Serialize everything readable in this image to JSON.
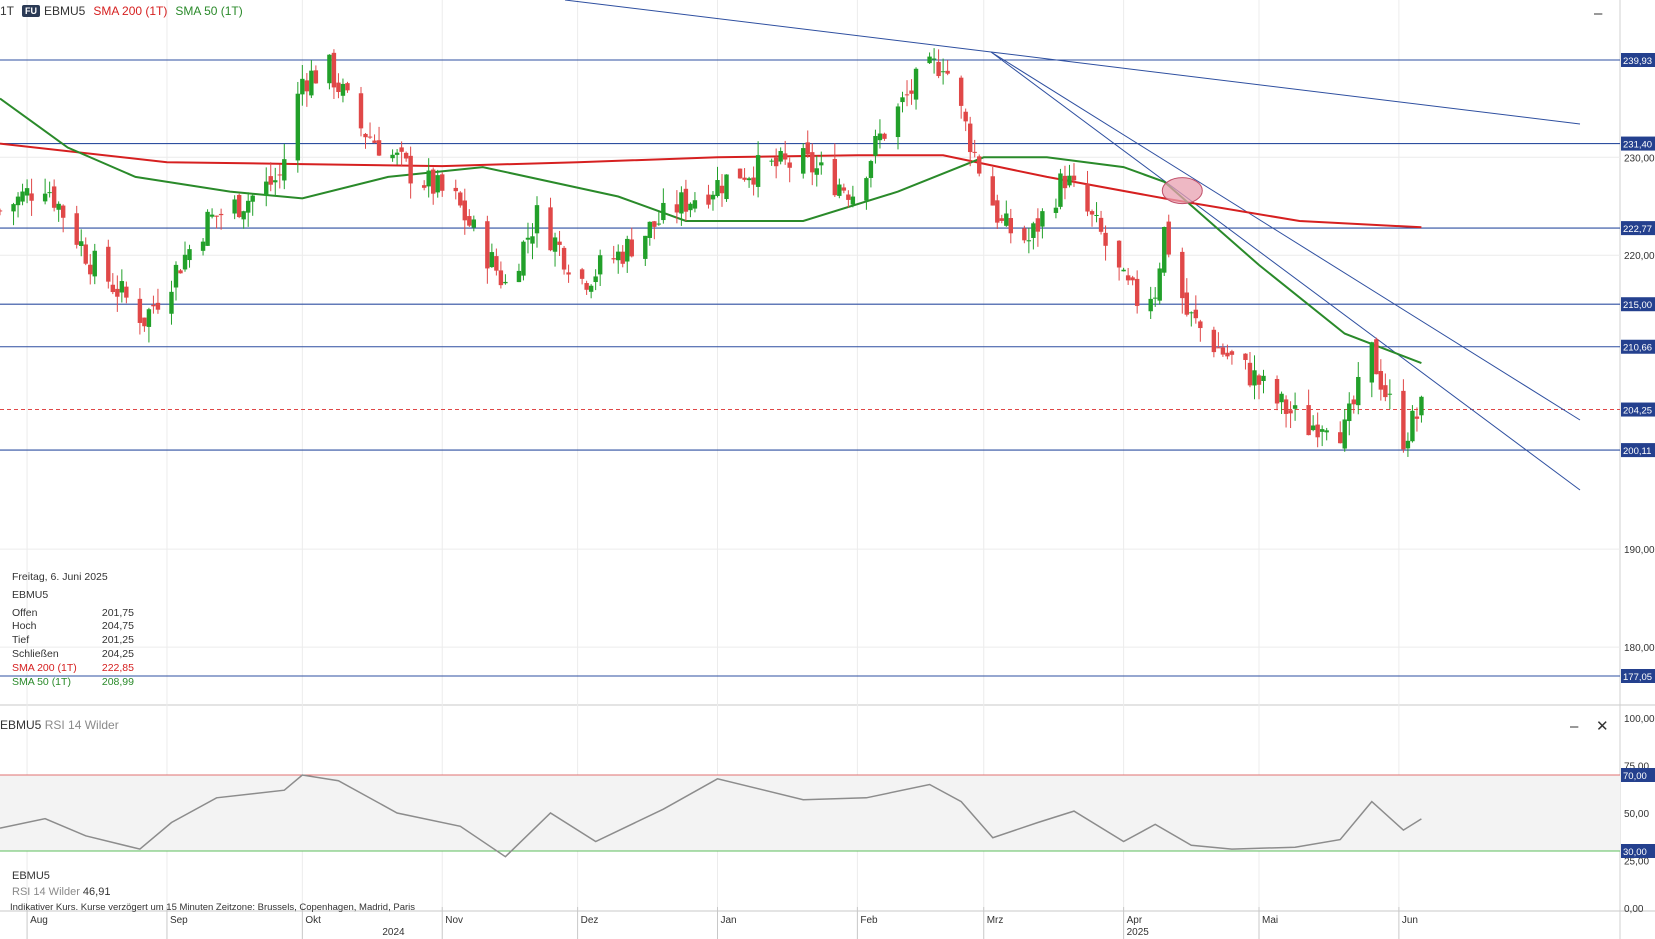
{
  "header": {
    "interval": "1T",
    "badge": "FU",
    "symbol": "EBMU5",
    "sma200_label": "SMA 200 (1T)",
    "sma50_label": "SMA 50 (1T)"
  },
  "colors": {
    "up": "#22a02a",
    "down": "#e04848",
    "sma200": "#d62020",
    "sma50": "#2a8a2a",
    "trend": "#2e4fa0",
    "label_bg": "#24408e",
    "rsi_line": "#8c8c8c",
    "rsi_upper": "#e07070",
    "rsi_lower": "#5cbf5c",
    "marker": "#e8a0b0"
  },
  "info_box": {
    "date": "Freitag, 6. Juni 2025",
    "symbol": "EBMU5",
    "rows": [
      {
        "label": "Offen",
        "value": "201,75"
      },
      {
        "label": "Hoch",
        "value": "204,75"
      },
      {
        "label": "Tief",
        "value": "201,25"
      },
      {
        "label": "Schließen",
        "value": "204,25"
      },
      {
        "label": "SMA 200 (1T)",
        "value": "222,85"
      },
      {
        "label": "SMA 50 (1T)",
        "value": "208,99"
      }
    ]
  },
  "rsi_panel": {
    "title": "EBMU5",
    "subtitle": "RSI 14 Wilder",
    "symbol": "EBMU5",
    "value_label": "RSI 14 Wilder",
    "value": "46,91"
  },
  "footer": "Indikativer Kurs. Kurse verzögert um 15 Minuten   Zeitzone: Brussels, Copenhagen, Madrid, Paris",
  "chart_data": [
    {
      "type": "candlestick",
      "symbol": "EBMU5",
      "ylim": [
        174,
        248
      ],
      "y_ticks": [
        "230,00",
        "220,00",
        "190,00",
        "180,00"
      ],
      "x_months": [
        "Aug",
        "Sep",
        "Okt",
        "Nov",
        "Dez",
        "Jan",
        "Feb",
        "Mrz",
        "Apr",
        "Mai",
        "Jun"
      ],
      "x_years": [
        "2024",
        "2025"
      ],
      "price_levels": [
        {
          "value": 239.93,
          "label": "239,93"
        },
        {
          "value": 231.4,
          "label": "231,40"
        },
        {
          "value": 222.77,
          "label": "222,77"
        },
        {
          "value": 215.0,
          "label": "215,00"
        },
        {
          "value": 210.66,
          "label": "210,66"
        },
        {
          "value": 200.11,
          "label": "200,11"
        },
        {
          "value": 177.05,
          "label": "177,05"
        }
      ],
      "current_price": {
        "value": 204.25,
        "label": "204,25"
      },
      "close_path": [
        {
          "date": "2024-07-26",
          "close": 224.5
        },
        {
          "date": "2024-08-05",
          "close": 227.5
        },
        {
          "date": "2024-08-15",
          "close": 219.5
        },
        {
          "date": "2024-08-27",
          "close": 213.5
        },
        {
          "date": "2024-09-10",
          "close": 223.5
        },
        {
          "date": "2024-09-20",
          "close": 226.0
        },
        {
          "date": "2024-09-26",
          "close": 228.0
        },
        {
          "date": "2024-10-01",
          "close": 238.0
        },
        {
          "date": "2024-10-07",
          "close": 239.0
        },
        {
          "date": "2024-10-14",
          "close": 233.0
        },
        {
          "date": "2024-10-25",
          "close": 228.5
        },
        {
          "date": "2024-11-04",
          "close": 225.5
        },
        {
          "date": "2024-11-15",
          "close": 217.0
        },
        {
          "date": "2024-11-22",
          "close": 224.0
        },
        {
          "date": "2024-12-02",
          "close": 217.5
        },
        {
          "date": "2024-12-10",
          "close": 220.0
        },
        {
          "date": "2024-12-23",
          "close": 225.0
        },
        {
          "date": "2025-01-06",
          "close": 228.5
        },
        {
          "date": "2025-01-20",
          "close": 229.5
        },
        {
          "date": "2025-01-31",
          "close": 226.5
        },
        {
          "date": "2025-02-06",
          "close": 232.0
        },
        {
          "date": "2025-02-14",
          "close": 237.5
        },
        {
          "date": "2025-02-20",
          "close": 240.0
        },
        {
          "date": "2025-02-28",
          "close": 229.0
        },
        {
          "date": "2025-03-05",
          "close": 223.0
        },
        {
          "date": "2025-03-11",
          "close": 221.5
        },
        {
          "date": "2025-03-19",
          "close": 228.0
        },
        {
          "date": "2025-03-27",
          "close": 222.0
        },
        {
          "date": "2025-04-01",
          "close": 217.0
        },
        {
          "date": "2025-04-04",
          "close": 215.5
        },
        {
          "date": "2025-04-08",
          "close": 216.5
        },
        {
          "date": "2025-04-10",
          "close": 222.5
        },
        {
          "date": "2025-04-15",
          "close": 214.0
        },
        {
          "date": "2025-04-22",
          "close": 210.5
        },
        {
          "date": "2025-04-30",
          "close": 207.5
        },
        {
          "date": "2025-05-05",
          "close": 205.0
        },
        {
          "date": "2025-05-12",
          "close": 202.5
        },
        {
          "date": "2025-05-16",
          "close": 203.5
        },
        {
          "date": "2025-05-20",
          "close": 202.0
        },
        {
          "date": "2025-05-26",
          "close": 210.0
        },
        {
          "date": "2025-05-29",
          "close": 206.0
        },
        {
          "date": "2025-06-02",
          "close": 201.5
        },
        {
          "date": "2025-06-06",
          "close": 204.25
        }
      ],
      "series": [
        {
          "name": "SMA 200 (1T)",
          "points": [
            {
              "date": "2024-07-26",
              "value": 231.4
            },
            {
              "date": "2024-09-01",
              "value": 229.5
            },
            {
              "date": "2024-10-01",
              "value": 229.3
            },
            {
              "date": "2024-11-01",
              "value": 229.1
            },
            {
              "date": "2024-12-01",
              "value": 229.5
            },
            {
              "date": "2025-01-01",
              "value": 230.0
            },
            {
              "date": "2025-02-01",
              "value": 230.2
            },
            {
              "date": "2025-02-20",
              "value": 230.2
            },
            {
              "date": "2025-03-15",
              "value": 228.0
            },
            {
              "date": "2025-04-10",
              "value": 225.8
            },
            {
              "date": "2025-05-10",
              "value": 223.5
            },
            {
              "date": "2025-06-06",
              "value": 222.85
            }
          ]
        },
        {
          "name": "SMA 50 (1T)",
          "points": [
            {
              "date": "2024-07-26",
              "value": 236.0
            },
            {
              "date": "2024-08-10",
              "value": 231.0
            },
            {
              "date": "2024-08-25",
              "value": 228.0
            },
            {
              "date": "2024-09-15",
              "value": 226.5
            },
            {
              "date": "2024-10-01",
              "value": 225.8
            },
            {
              "date": "2024-10-20",
              "value": 228.0
            },
            {
              "date": "2024-11-10",
              "value": 229.0
            },
            {
              "date": "2024-12-10",
              "value": 226.0
            },
            {
              "date": "2024-12-25",
              "value": 223.5
            },
            {
              "date": "2025-01-20",
              "value": 223.5
            },
            {
              "date": "2025-02-10",
              "value": 226.5
            },
            {
              "date": "2025-03-01",
              "value": 230.0
            },
            {
              "date": "2025-03-15",
              "value": 230.0
            },
            {
              "date": "2025-04-01",
              "value": 229.0
            },
            {
              "date": "2025-04-10",
              "value": 227.5
            },
            {
              "date": "2025-05-01",
              "value": 219.0
            },
            {
              "date": "2025-05-20",
              "value": 212.0
            },
            {
              "date": "2025-06-06",
              "value": 208.99
            }
          ]
        }
      ]
    },
    {
      "type": "line",
      "name": "RSI 14 Wilder",
      "ylim": [
        0,
        100
      ],
      "y_ticks": [
        "100,00",
        "75,00",
        "50,00",
        "25,00",
        "0,00"
      ],
      "levels": [
        {
          "value": 70,
          "label": "70,00"
        },
        {
          "value": 30,
          "label": "30,00"
        }
      ],
      "points": [
        {
          "date": "2024-07-26",
          "value": 42
        },
        {
          "date": "2024-08-05",
          "value": 47
        },
        {
          "date": "2024-08-14",
          "value": 38
        },
        {
          "date": "2024-08-26",
          "value": 31
        },
        {
          "date": "2024-09-02",
          "value": 45
        },
        {
          "date": "2024-09-12",
          "value": 58
        },
        {
          "date": "2024-09-27",
          "value": 62
        },
        {
          "date": "2024-10-01",
          "value": 70
        },
        {
          "date": "2024-10-09",
          "value": 67
        },
        {
          "date": "2024-10-22",
          "value": 50
        },
        {
          "date": "2024-11-05",
          "value": 43
        },
        {
          "date": "2024-11-15",
          "value": 27
        },
        {
          "date": "2024-11-25",
          "value": 50
        },
        {
          "date": "2024-12-05",
          "value": 35
        },
        {
          "date": "2024-12-20",
          "value": 52
        },
        {
          "date": "2025-01-01",
          "value": 68
        },
        {
          "date": "2025-01-20",
          "value": 57
        },
        {
          "date": "2025-02-03",
          "value": 58
        },
        {
          "date": "2025-02-17",
          "value": 65
        },
        {
          "date": "2025-02-24",
          "value": 56
        },
        {
          "date": "2025-03-03",
          "value": 37
        },
        {
          "date": "2025-03-13",
          "value": 45
        },
        {
          "date": "2025-03-21",
          "value": 51
        },
        {
          "date": "2025-04-01",
          "value": 35
        },
        {
          "date": "2025-04-08",
          "value": 44
        },
        {
          "date": "2025-04-16",
          "value": 33
        },
        {
          "date": "2025-04-25",
          "value": 31
        },
        {
          "date": "2025-05-09",
          "value": 32
        },
        {
          "date": "2025-05-19",
          "value": 36
        },
        {
          "date": "2025-05-26",
          "value": 56
        },
        {
          "date": "2025-06-02",
          "value": 41
        },
        {
          "date": "2025-06-06",
          "value": 46.91
        }
      ]
    }
  ]
}
